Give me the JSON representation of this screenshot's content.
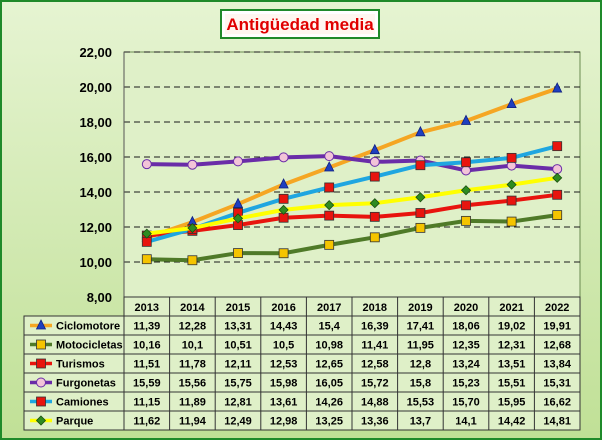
{
  "chart_data": {
    "type": "line",
    "title": "Antigüedad media",
    "categories": [
      "2013",
      "2014",
      "2015",
      "2016",
      "2017",
      "2018",
      "2019",
      "2020",
      "2021",
      "2022"
    ],
    "y_ticks": [
      "22,00",
      "20,00",
      "18,00",
      "16,00",
      "14,00",
      "12,00",
      "10,00",
      "8,00"
    ],
    "ylim": [
      8,
      22
    ],
    "grid": "horizontal dashed",
    "legend": "table below chart",
    "series": [
      {
        "name": "Ciclomotore",
        "color": "#f5a623",
        "marker": "triangle",
        "marker_color": "#1f3fbf",
        "values": [
          11.39,
          12.28,
          13.31,
          14.43,
          15.4,
          16.39,
          17.41,
          18.06,
          19.02,
          19.91
        ],
        "labels": [
          "11,39",
          "12,28",
          "13,31",
          "14,43",
          "15,4",
          "16,39",
          "17,41",
          "18,06",
          "19,02",
          "19,91"
        ]
      },
      {
        "name": "Motocicletas",
        "color": "#4f7a28",
        "marker": "square",
        "marker_color": "#f5c400",
        "values": [
          10.16,
          10.1,
          10.51,
          10.5,
          10.98,
          11.41,
          11.95,
          12.35,
          12.31,
          12.68
        ],
        "labels": [
          "10,16",
          "10,1",
          "10,51",
          "10,5",
          "10,98",
          "11,41",
          "11,95",
          "12,35",
          "12,31",
          "12,68"
        ]
      },
      {
        "name": "Turismos",
        "color": "#e8140e",
        "marker": "square",
        "marker_color": "#e8140e",
        "values": [
          11.51,
          11.78,
          12.11,
          12.53,
          12.65,
          12.58,
          12.8,
          13.24,
          13.51,
          13.84
        ],
        "labels": [
          "11,51",
          "11,78",
          "12,11",
          "12,53",
          "12,65",
          "12,58",
          "12,8",
          "13,24",
          "13,51",
          "13,84"
        ]
      },
      {
        "name": "Furgonetas",
        "color": "#6a2ca8",
        "marker": "circle",
        "marker_color": "#f2c4d8",
        "values": [
          15.59,
          15.56,
          15.75,
          15.98,
          16.05,
          15.72,
          15.8,
          15.23,
          15.51,
          15.31
        ],
        "labels": [
          "15,59",
          "15,56",
          "15,75",
          "15,98",
          "16,05",
          "15,72",
          "15,8",
          "15,23",
          "15,51",
          "15,31"
        ]
      },
      {
        "name": "Camiones",
        "color": "#1fa6e0",
        "marker": "square",
        "marker_color": "#e8140e",
        "values": [
          11.15,
          11.89,
          12.81,
          13.61,
          14.26,
          14.88,
          15.53,
          15.7,
          15.95,
          16.62
        ],
        "labels": [
          "11,15",
          "11,89",
          "12,81",
          "13,61",
          "14,26",
          "14,88",
          "15,53",
          "15,70",
          "15,95",
          "16,62"
        ]
      },
      {
        "name": "Parque",
        "color": "#ffff00",
        "marker": "diamond",
        "marker_color": "#2e8b20",
        "values": [
          11.62,
          11.94,
          12.49,
          12.98,
          13.25,
          13.36,
          13.7,
          14.1,
          14.42,
          14.81
        ],
        "labels": [
          "11,62",
          "11,94",
          "12,49",
          "12,98",
          "13,25",
          "13,36",
          "13,7",
          "14,1",
          "14,42",
          "14,81"
        ]
      }
    ]
  },
  "colors": {
    "background_outer": "#c8e6a0",
    "plot_area": "#d8eec0",
    "border": "#1f8a2a",
    "title_box_border": "#1f8a2a",
    "title_color": "#e00000"
  }
}
